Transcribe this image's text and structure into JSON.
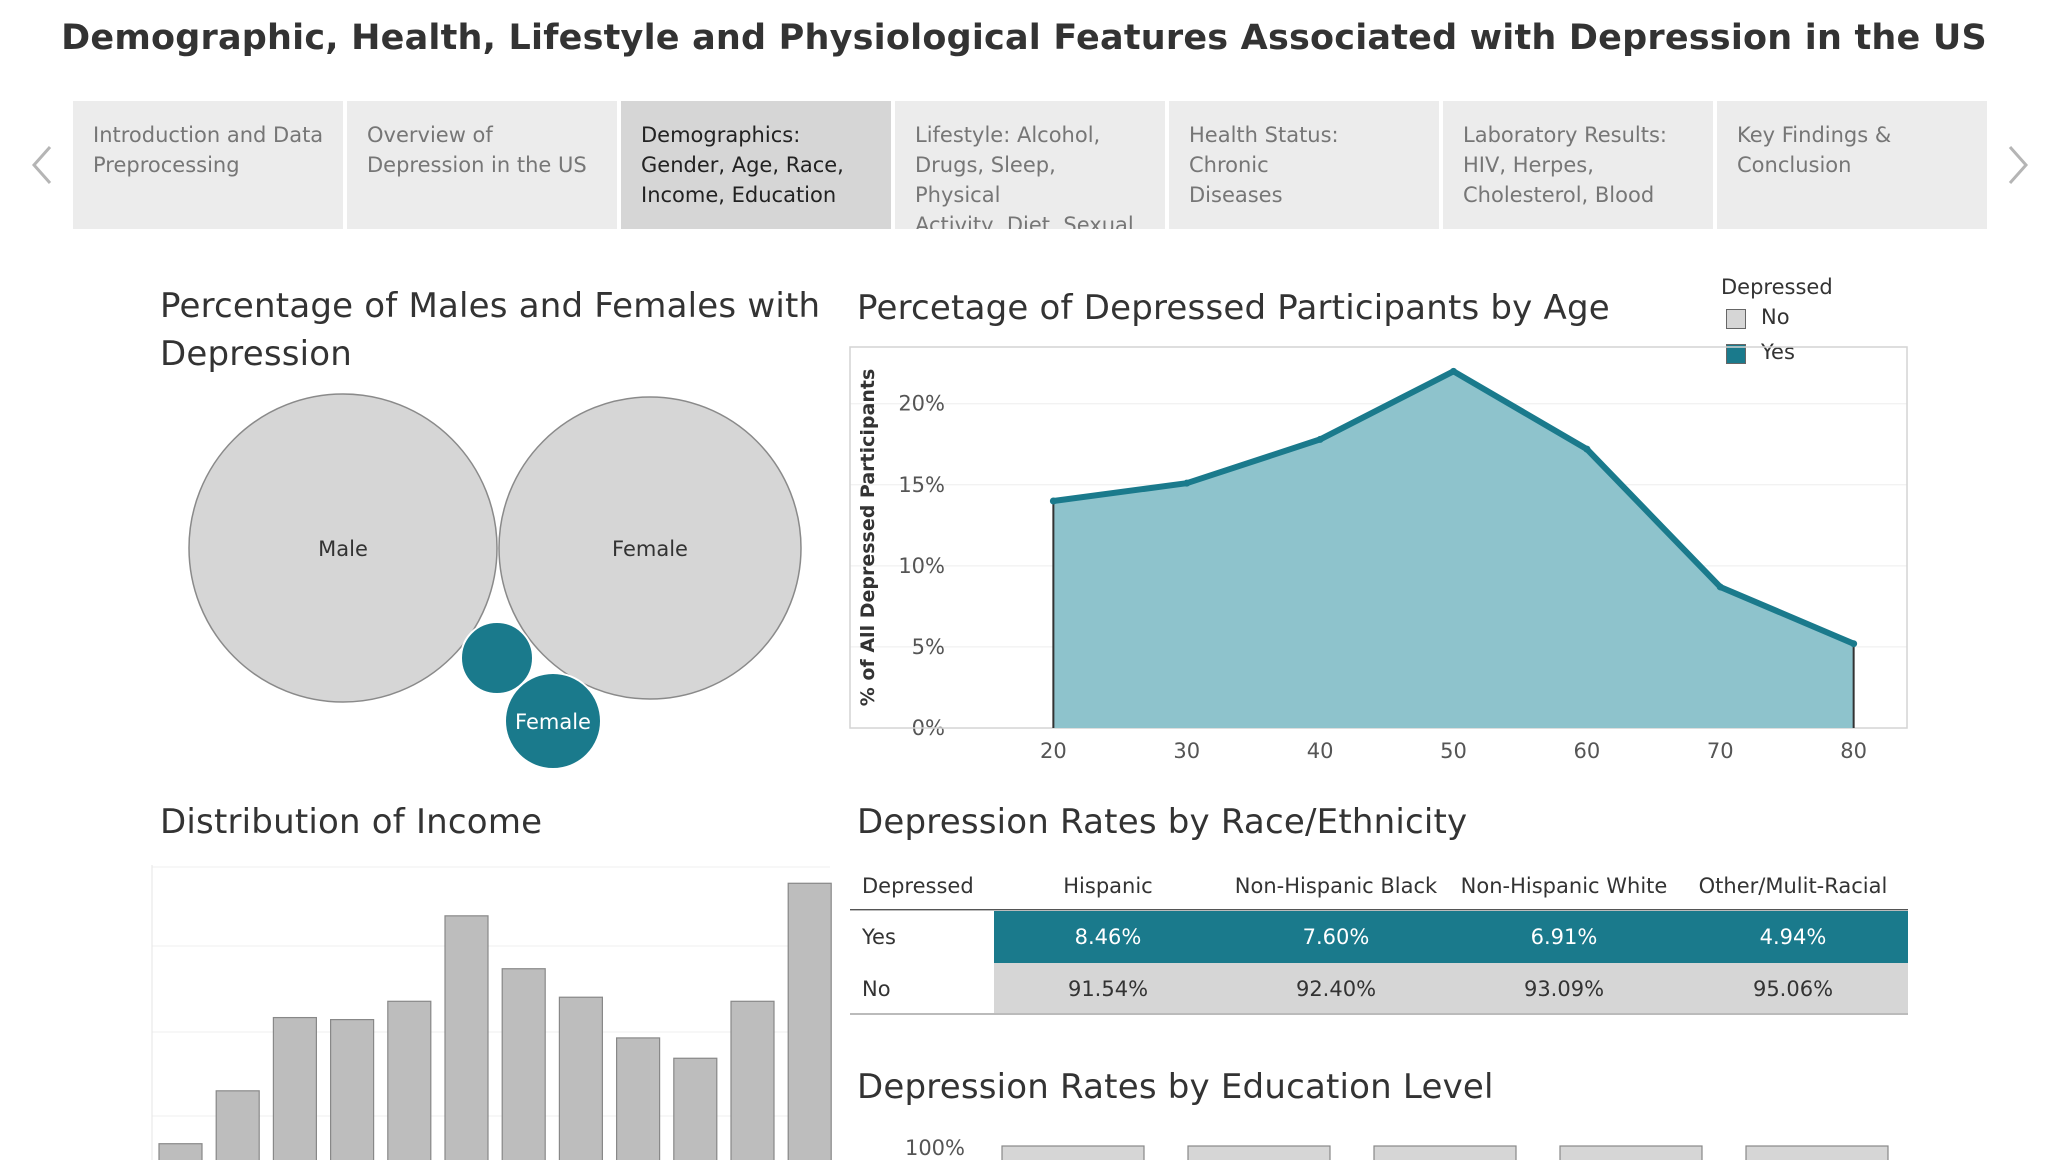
{
  "title": "Demographic, Health, Lifestyle and Physiological Features Associated with Depression in the US",
  "colors": {
    "yes": "#1a7a8c",
    "no": "#d6d6d6",
    "area_fill": "#8ec3cc",
    "bar": "#bdbdbd"
  },
  "nav": {
    "prev_icon": "chevron-left-icon",
    "next_icon": "chevron-right-icon",
    "tabs": [
      {
        "lines": [
          "Introduction and Data",
          "Preprocessing"
        ],
        "active": false
      },
      {
        "lines": [
          "Overview of",
          "Depression in the US"
        ],
        "active": false
      },
      {
        "lines": [
          "Demographics:",
          "Gender, Age, Race,",
          "Income, Education"
        ],
        "active": true
      },
      {
        "lines": [
          "Lifestyle: Alcohol,",
          "Drugs, Sleep, Physical",
          "Activity, Diet, Sexual"
        ],
        "active": false
      },
      {
        "lines": [
          "Health Status: Chronic",
          "Diseases"
        ],
        "active": false
      },
      {
        "lines": [
          "Laboratory Results:",
          "HIV, Herpes,",
          "Cholesterol, Blood"
        ],
        "active": false
      },
      {
        "lines": [
          "Key Findings &",
          "Conclusion"
        ],
        "active": false
      }
    ]
  },
  "gender": {
    "heading_line1": "Percentage of Males and Females with",
    "heading_line2": "Depression"
  },
  "legend": {
    "title": "Depressed",
    "items": [
      "No",
      "Yes"
    ]
  },
  "chart_data": [
    {
      "type": "bubble",
      "title": "Percentage of Males and Females with Depression",
      "bubbles": [
        {
          "label": "Male",
          "depressed": "No"
        },
        {
          "label": "Female",
          "depressed": "No"
        },
        {
          "label": "",
          "depressed": "Yes"
        },
        {
          "label": "Female",
          "depressed": "Yes"
        }
      ]
    },
    {
      "type": "area",
      "title": "Percetage of Depressed Participants by Age",
      "ylabel": "% of All Depressed Participants",
      "xlabel": "",
      "x": [
        20,
        30,
        40,
        50,
        60,
        70,
        80
      ],
      "x_ticks": [
        "20",
        "30",
        "40",
        "50",
        "60",
        "70",
        "80"
      ],
      "y": [
        14.0,
        15.1,
        17.8,
        22.0,
        17.2,
        8.7,
        5.2
      ],
      "y_ticks": [
        "0%",
        "5%",
        "10%",
        "15%",
        "20%"
      ],
      "ylim": [
        0,
        23.5
      ],
      "xlim": [
        13,
        84
      ],
      "series": [
        {
          "name": "Yes",
          "values": [
            14.0,
            15.1,
            17.8,
            22.0,
            17.2,
            8.7,
            5.2
          ]
        }
      ]
    },
    {
      "type": "bar",
      "title": "Distribution of Income",
      "values": [
        4,
        17,
        35,
        34.5,
        39,
        60,
        47,
        40,
        30,
        25,
        39,
        68
      ],
      "ylim": [
        0,
        72
      ],
      "grid": true
    },
    {
      "type": "table",
      "title": "Depression Rates by Race/Ethnicity",
      "row_header": "Depressed",
      "columns": [
        "Hispanic",
        "Non-Hispanic Black",
        "Non-Hispanic White",
        "Other/Mulit-Racial"
      ],
      "rows": [
        {
          "label": "Yes",
          "values": [
            "8.46%",
            "7.60%",
            "6.91%",
            "4.94%"
          ]
        },
        {
          "label": "No",
          "values": [
            "91.54%",
            "92.40%",
            "93.09%",
            "95.06%"
          ]
        }
      ]
    },
    {
      "type": "bar",
      "title": "Depression Rates by Education Level",
      "y_ticks": [
        "100%"
      ],
      "bar_count": 5
    }
  ],
  "income": {
    "heading": "Distribution of Income"
  },
  "age": {
    "heading": "Percetage of Depressed Participants by Age"
  },
  "race": {
    "heading": "Depression Rates by Race/Ethnicity"
  },
  "education": {
    "heading": "Depression Rates by Education Level"
  }
}
